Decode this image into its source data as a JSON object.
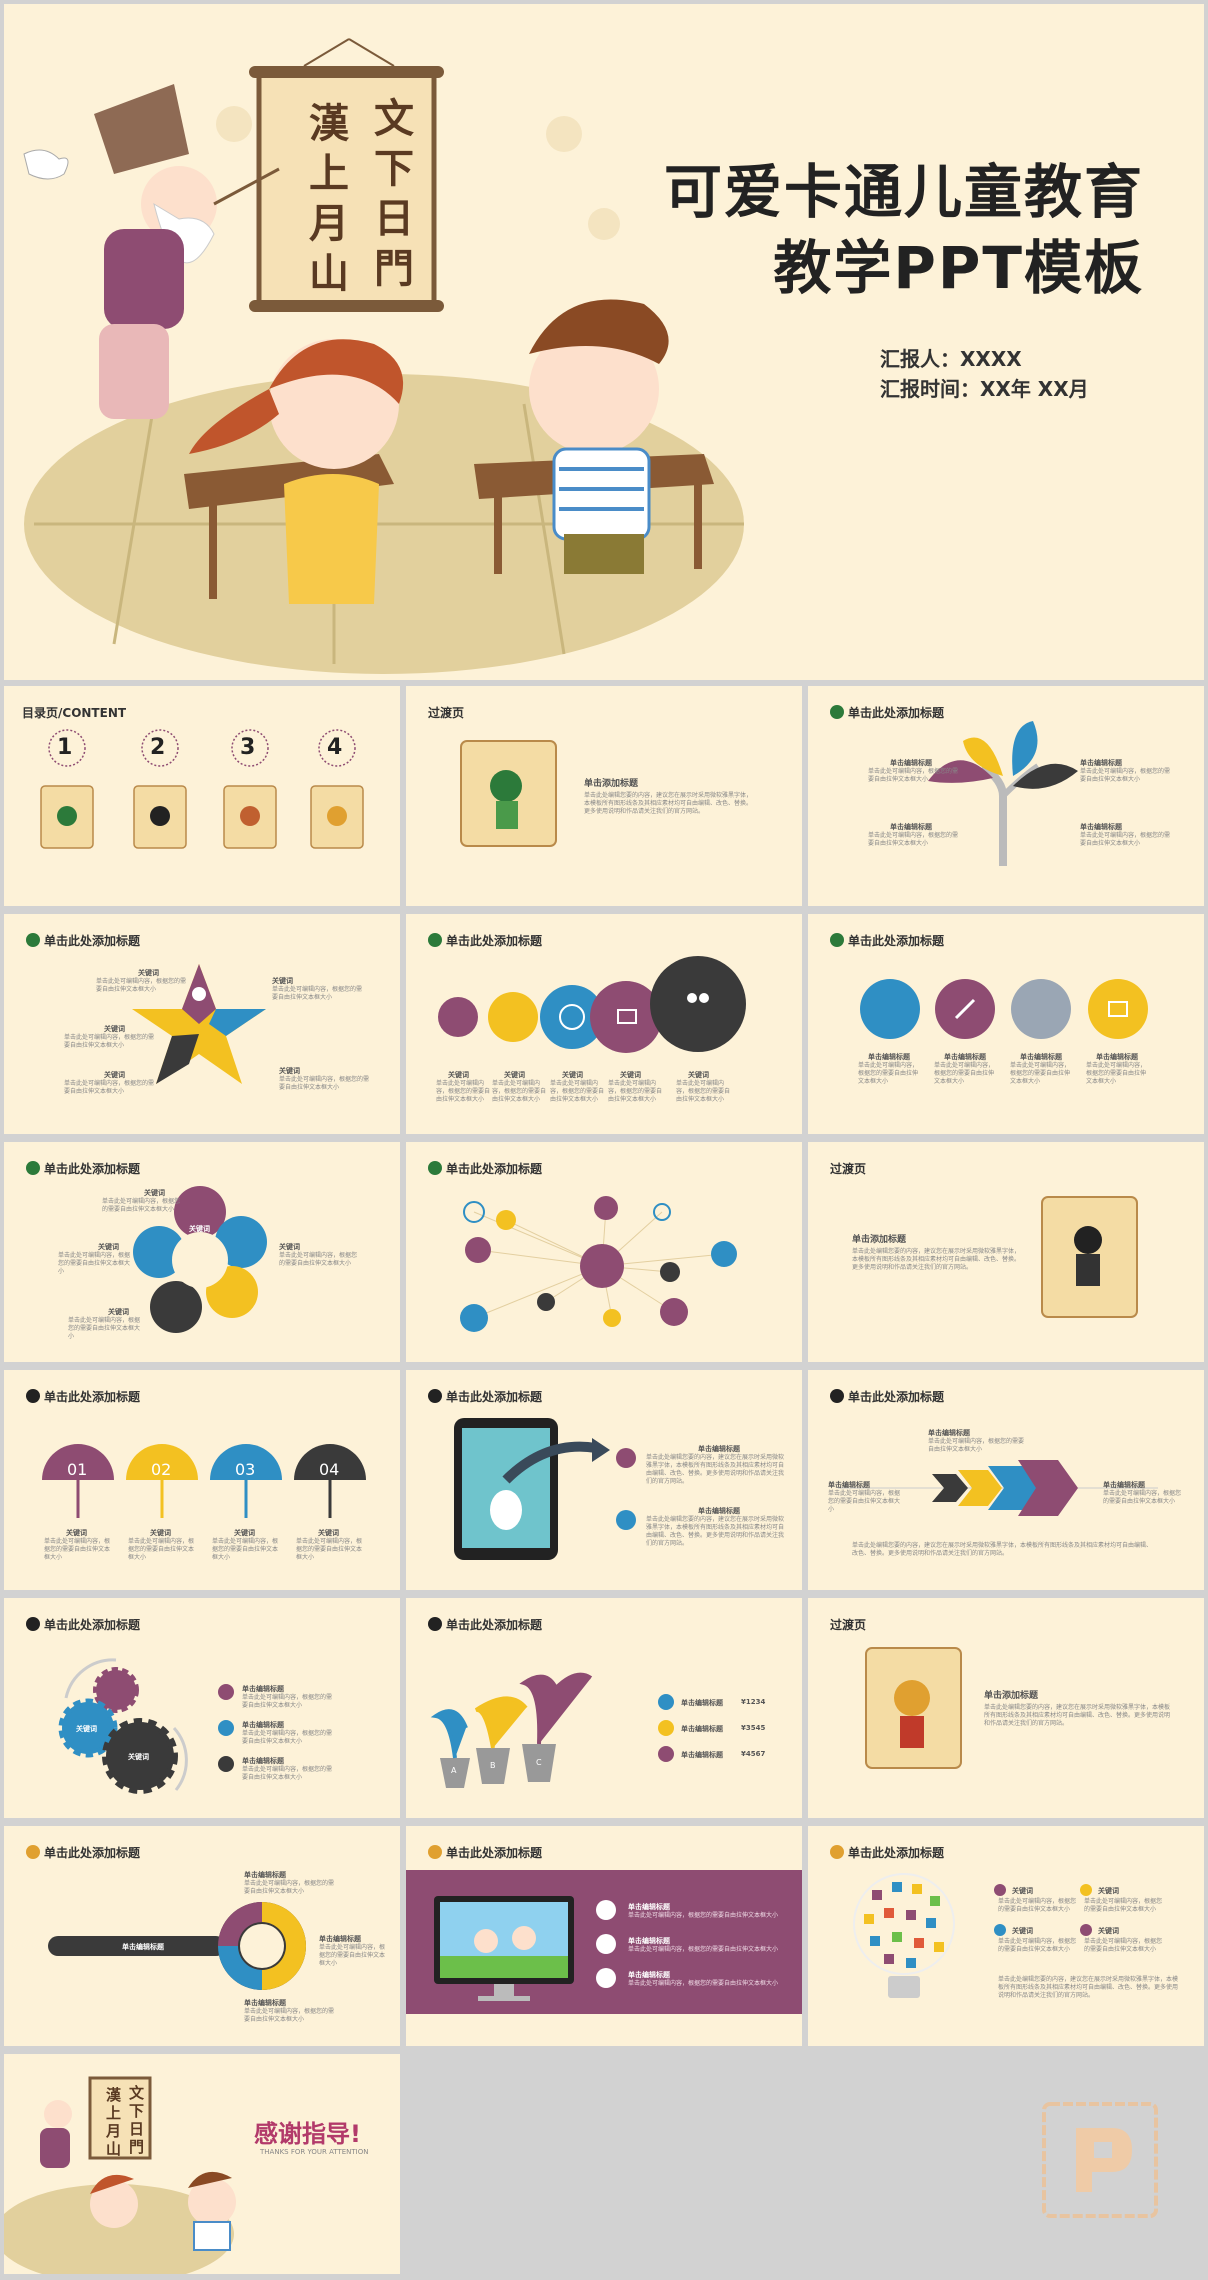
{
  "cover": {
    "title_line1": "可爱卡通儿童教育",
    "title_line2": "教学PPT模板",
    "reporter": "汇报人：XXXX",
    "report_time": "汇报时间：XX年 XX月",
    "scroll_chars_right": "文下日門",
    "scroll_chars_left": "漢上月山"
  },
  "contents": {
    "title": "目录页/CONTENT",
    "numbers": [
      "1",
      "2",
      "3",
      "4"
    ]
  },
  "transition": {
    "title": "过渡页",
    "heading": "单击添加标题",
    "body": "单击此处编辑您要的内容，建议您在展示时采用微软雅黑字体，本模板所有图形线条及其相应素材均可自由编辑、改色、替换。更多使用说明和作品请关注我们的官方网站。"
  },
  "common": {
    "slide_title": "单击此处添加标题",
    "keyword": "关键词",
    "click_edit_title": "单击编辑标题",
    "small_text": "单击此处可编辑内容，根据您的需要自由拉伸文本框大小"
  },
  "umbrellas": [
    "01",
    "02",
    "03",
    "04"
  ],
  "pots": {
    "letters": [
      "A",
      "B",
      "C"
    ],
    "values": [
      "¥1234",
      "¥3545",
      "¥4567"
    ]
  },
  "thanks": {
    "title": "感谢指导!",
    "subtitle": "THANKS FOR YOUR ATTENTION"
  },
  "colors": {
    "bg": "#fdf2d8",
    "purple": "#8e4c72",
    "yellow": "#f3c121",
    "blue": "#2f8fc4",
    "dark": "#3a3a3a"
  }
}
